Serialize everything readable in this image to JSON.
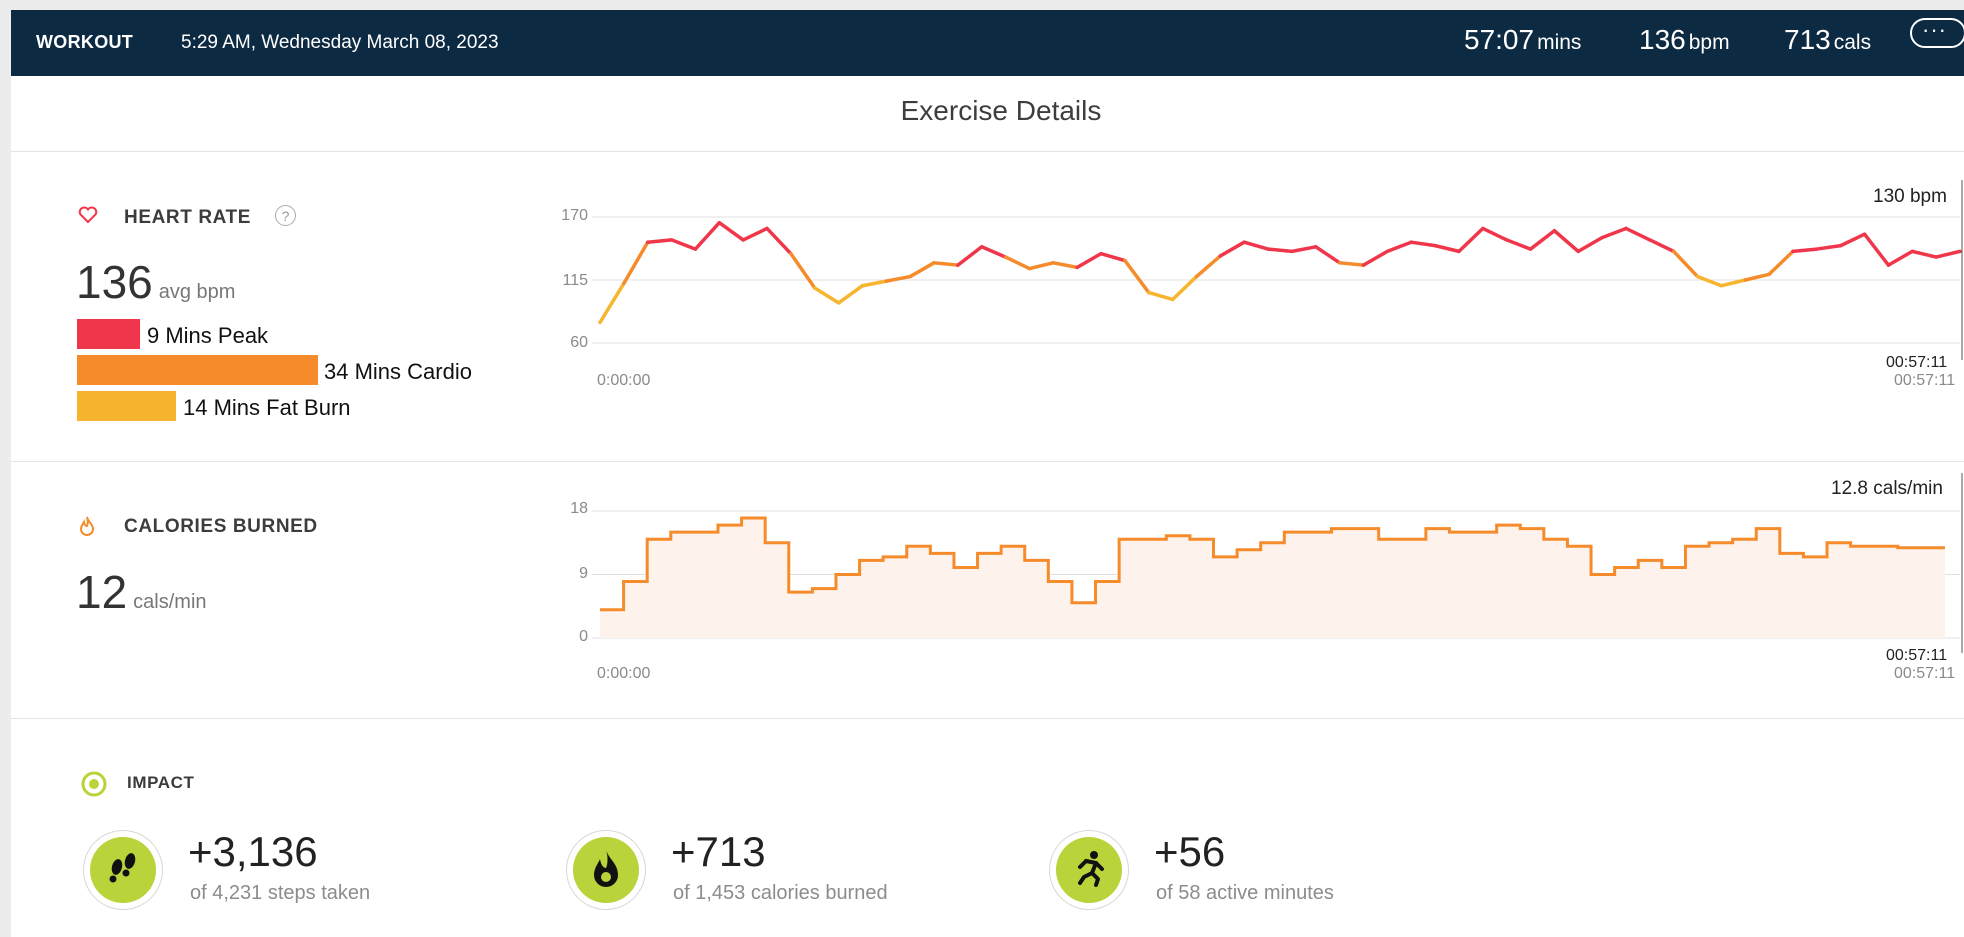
{
  "topbar": {
    "title": "WORKOUT",
    "datetime": "5:29 AM, Wednesday March 08, 2023",
    "duration": {
      "value": "57:07",
      "unit": "mins"
    },
    "heart": {
      "value": "136",
      "unit": "bpm"
    },
    "calories": {
      "value": "713",
      "unit": "cals"
    },
    "more_label": "···"
  },
  "page_title": "Exercise Details",
  "heart_rate": {
    "label": "HEART RATE",
    "help": "?",
    "avg_value": "136",
    "avg_unit": "avg bpm",
    "zones": [
      {
        "label": "9 Mins Peak",
        "minutes": 9,
        "color": "#f0364b"
      },
      {
        "label": "34 Mins Cardio",
        "minutes": 34,
        "color": "#f58b2a"
      },
      {
        "label": "14 Mins Fat Burn",
        "minutes": 14,
        "color": "#f7b42f"
      }
    ],
    "current_label": "130 bpm",
    "y_ticks": [
      "170",
      "115",
      "60"
    ],
    "start_time": "0:00:00",
    "end_time": "00:57:11",
    "end_time_2": "00:57:11"
  },
  "calories_burned": {
    "label": "CALORIES BURNED",
    "avg_value": "12",
    "avg_unit": "cals/min",
    "current_label": "12.8 cals/min",
    "y_ticks": [
      "18",
      "9",
      "0"
    ],
    "start_time": "0:00:00",
    "end_time": "00:57:11",
    "end_time_2": "00:57:11"
  },
  "impact": {
    "label": "IMPACT",
    "items": [
      {
        "icon": "footsteps-icon",
        "value": "+3,136",
        "sub": "of 4,231 steps taken"
      },
      {
        "icon": "flame-icon",
        "value": "+713",
        "sub": "of 1,453 calories burned"
      },
      {
        "icon": "runner-icon",
        "value": "+56",
        "sub": "of 58 active minutes"
      }
    ]
  },
  "chart_data": [
    {
      "type": "line",
      "title": "HEART RATE",
      "xlabel": "",
      "ylabel": "bpm",
      "xlim": [
        "0:00:00",
        "00:57:11"
      ],
      "ylim": [
        60,
        170
      ],
      "grid": true,
      "x_minutes": [
        0,
        1,
        2,
        3,
        4,
        5,
        6,
        7,
        8,
        9,
        10,
        11,
        12,
        13,
        14,
        15,
        16,
        17,
        18,
        19,
        20,
        21,
        22,
        23,
        24,
        25,
        26,
        27,
        28,
        29,
        30,
        31,
        32,
        33,
        34,
        35,
        36,
        37,
        38,
        39,
        40,
        41,
        42,
        43,
        44,
        45,
        46,
        47,
        48,
        49,
        50,
        51,
        52,
        53,
        54,
        55,
        56,
        57
      ],
      "series": [
        {
          "values": [
            78,
            112,
            148,
            150,
            142,
            165,
            150,
            160,
            138,
            108,
            95,
            110,
            114,
            118,
            130,
            128,
            144,
            135,
            125,
            130,
            126,
            138,
            132,
            104,
            98,
            118,
            136,
            148,
            142,
            140,
            144,
            130,
            128,
            140,
            148,
            145,
            140,
            160,
            150,
            142,
            158,
            140,
            152,
            160,
            150,
            140,
            118,
            110,
            115,
            120,
            140,
            142,
            145,
            155,
            128,
            140,
            135,
            140
          ]
        }
      ]
    },
    {
      "type": "area",
      "title": "CALORIES BURNED",
      "xlabel": "",
      "ylabel": "cals/min",
      "xlim": [
        "0:00:00",
        "00:57:11"
      ],
      "ylim": [
        0,
        18
      ],
      "grid": true,
      "x_minutes": [
        0,
        1,
        2,
        3,
        4,
        5,
        6,
        7,
        8,
        9,
        10,
        11,
        12,
        13,
        14,
        15,
        16,
        17,
        18,
        19,
        20,
        21,
        22,
        23,
        24,
        25,
        26,
        27,
        28,
        29,
        30,
        31,
        32,
        33,
        34,
        35,
        36,
        37,
        38,
        39,
        40,
        41,
        42,
        43,
        44,
        45,
        46,
        47,
        48,
        49,
        50,
        51,
        52,
        53,
        54,
        55,
        56,
        57
      ],
      "series": [
        {
          "values": [
            4,
            8,
            14,
            15,
            15,
            16,
            17,
            13.5,
            6.5,
            7,
            9,
            11,
            11.5,
            13,
            12,
            10,
            12,
            13,
            11,
            8,
            5,
            8,
            14,
            14,
            14.5,
            14,
            11.5,
            12.5,
            13.5,
            15,
            15,
            15.5,
            15.5,
            14,
            14,
            15.5,
            15,
            15,
            16,
            15.5,
            14,
            13,
            9,
            10,
            11,
            10,
            13,
            13.5,
            14,
            15.5,
            12,
            11.5,
            13.5,
            13,
            13,
            12.8,
            12.8,
            12.8
          ]
        }
      ]
    }
  ]
}
